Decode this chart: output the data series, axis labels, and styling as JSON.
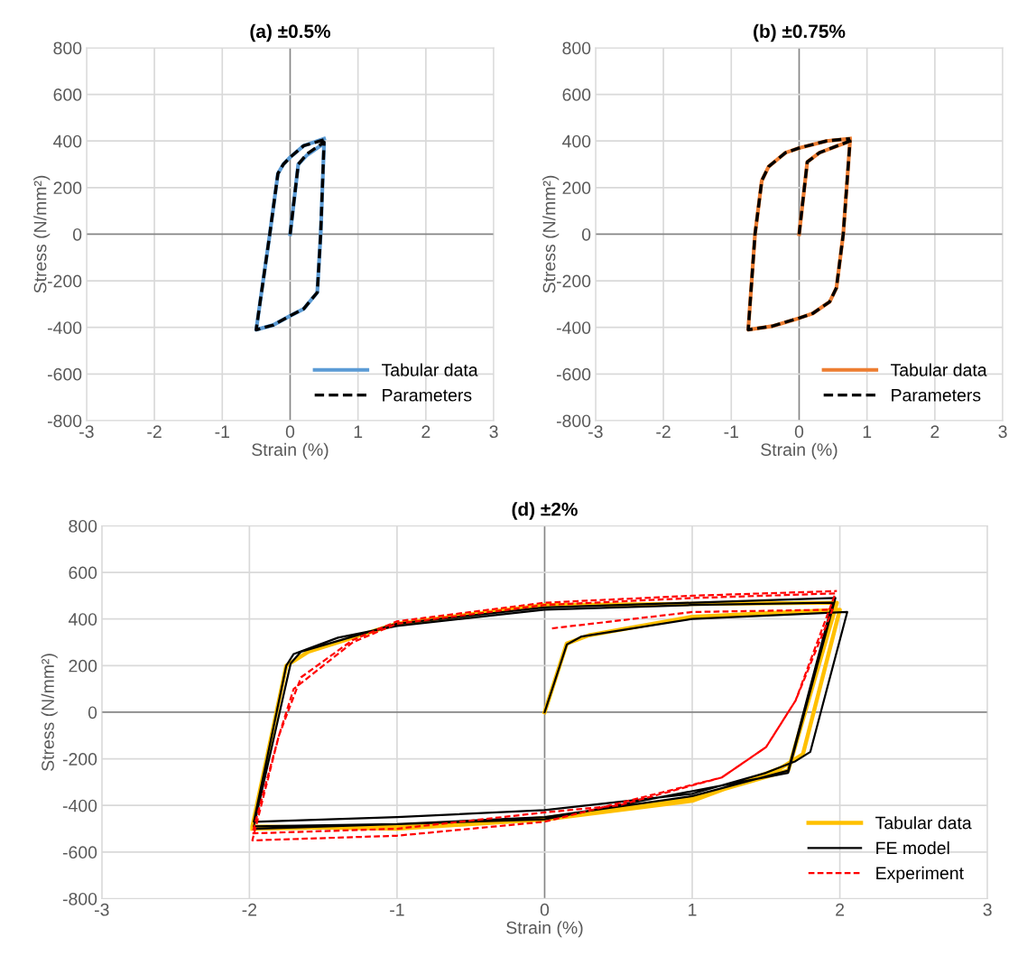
{
  "chart_data": [
    {
      "type": "line",
      "title": "(a) ±0.5%",
      "xlabel": "Strain (%)",
      "ylabel": "Stress (N/mm²)",
      "xlim": [
        -3,
        3
      ],
      "ylim": [
        -800,
        800
      ],
      "xticks": [
        -3,
        -2,
        -1,
        0,
        1,
        2,
        3
      ],
      "yticks": [
        -800,
        -600,
        -400,
        -200,
        0,
        200,
        400,
        600,
        800
      ],
      "grid": true,
      "legend": "bottom right",
      "series": [
        {
          "name": "Tabular data",
          "color": "#5b9bd5",
          "line_style": "solid",
          "x": [
            0,
            0.12,
            0.25,
            0.5,
            0.45,
            0.4,
            0.2,
            0,
            -0.25,
            -0.5,
            -0.3,
            -0.18,
            -0.1,
            0,
            0.2,
            0.5
          ],
          "values": [
            0,
            300,
            340,
            390,
            0,
            -250,
            -320,
            -350,
            -390,
            -410,
            0,
            260,
            300,
            330,
            380,
            410
          ]
        },
        {
          "name": "Parameters",
          "color": "#000000",
          "line_style": "dashed",
          "x": [
            0,
            0.12,
            0.25,
            0.5,
            0.45,
            0.4,
            0.2,
            0,
            -0.25,
            -0.5,
            -0.3,
            -0.18,
            -0.1,
            0,
            0.2,
            0.5
          ],
          "values": [
            0,
            300,
            345,
            395,
            0,
            -250,
            -320,
            -350,
            -390,
            -410,
            0,
            260,
            300,
            330,
            380,
            405
          ]
        }
      ]
    },
    {
      "type": "line",
      "title": "(b) ±0.75%",
      "xlabel": "Strain (%)",
      "ylabel": "Stress (N/mm²)",
      "xlim": [
        -3,
        3
      ],
      "ylim": [
        -800,
        800
      ],
      "xticks": [
        -3,
        -2,
        -1,
        0,
        1,
        2,
        3
      ],
      "yticks": [
        -800,
        -600,
        -400,
        -200,
        0,
        200,
        400,
        600,
        800
      ],
      "grid": true,
      "legend": "bottom right",
      "series": [
        {
          "name": "Tabular data",
          "color": "#ed7d31",
          "line_style": "solid",
          "x": [
            0,
            0.12,
            0.3,
            0.75,
            0.65,
            0.55,
            0.45,
            0.2,
            0,
            -0.4,
            -0.75,
            -0.65,
            -0.55,
            -0.45,
            -0.2,
            0,
            0.4,
            0.75
          ],
          "values": [
            0,
            310,
            350,
            400,
            0,
            -230,
            -290,
            -340,
            -360,
            -395,
            -410,
            0,
            230,
            290,
            350,
            370,
            400,
            410
          ]
        },
        {
          "name": "Parameters",
          "color": "#000000",
          "line_style": "dashed",
          "x": [
            0,
            0.12,
            0.3,
            0.75,
            0.65,
            0.55,
            0.45,
            0.2,
            0,
            -0.4,
            -0.75,
            -0.65,
            -0.55,
            -0.45,
            -0.2,
            0,
            0.4,
            0.75
          ],
          "values": [
            0,
            310,
            350,
            400,
            0,
            -230,
            -290,
            -340,
            -360,
            -395,
            -410,
            0,
            230,
            290,
            350,
            370,
            400,
            410
          ]
        }
      ]
    },
    {
      "type": "line",
      "title": "(d) ±2%",
      "xlabel": "Strain (%)",
      "ylabel": "Stress (N/mm²)",
      "xlim": [
        -3,
        3
      ],
      "ylim": [
        -800,
        800
      ],
      "xticks": [
        -3,
        -2,
        -1,
        0,
        1,
        2,
        3
      ],
      "yticks": [
        -800,
        -600,
        -400,
        -200,
        0,
        200,
        400,
        600,
        800
      ],
      "grid": true,
      "legend": "bottom right",
      "series": [
        {
          "name": "Tabular data",
          "color": "#ffc000",
          "line_style": "solid",
          "x": [
            0,
            0.15,
            0.3,
            1,
            2.0,
            1.75,
            1.6,
            1,
            0,
            -1,
            -1.98,
            -1.75,
            -1.6,
            -1,
            0,
            1,
            1.98,
            1.65,
            1,
            0,
            -1,
            -1.98
          ],
          "values": [
            0,
            295,
            330,
            410,
            440,
            -180,
            -240,
            -380,
            -460,
            -500,
            -490,
            200,
            260,
            380,
            460,
            465,
            470,
            -250,
            -370,
            -455,
            -490,
            -500
          ]
        },
        {
          "name": "FE model",
          "color": "#000000",
          "line_style": "solid",
          "x": [
            0,
            0.15,
            0.25,
            1,
            2.05,
            1.8,
            1.7,
            1.5,
            1,
            0,
            -1,
            -1.97,
            -1.75,
            -1.7,
            -1.4,
            -1,
            0,
            1,
            1.95,
            1.65,
            1,
            0,
            -1,
            -1.97,
            -1.72,
            -1.65,
            -1,
            0,
            1,
            1.97,
            1.65,
            0,
            -1.97
          ],
          "values": [
            0,
            290,
            325,
            400,
            430,
            -170,
            -210,
            -260,
            -350,
            -420,
            -450,
            -470,
            200,
            250,
            320,
            370,
            440,
            460,
            470,
            -250,
            -360,
            -450,
            -480,
            -490,
            210,
            260,
            380,
            450,
            470,
            490,
            -260,
            -460,
            -500
          ]
        },
        {
          "name": "Experiment",
          "color": "#ff0000",
          "line_style": "dashed",
          "x": [
            0.05,
            1,
            1.95,
            1.7,
            1.5,
            1.2,
            0.5,
            0,
            -1,
            -1.98,
            -1.8,
            -1.7,
            -1.5,
            -1.3,
            -1,
            0,
            1,
            1.97,
            1.7,
            1.5,
            1.2,
            0,
            -1,
            -1.98,
            -1.8,
            -1.65,
            -1.3,
            -1,
            0,
            1,
            1.98
          ],
          "values": [
            360,
            430,
            440,
            50,
            -150,
            -280,
            -400,
            -430,
            -500,
            -520,
            -100,
            100,
            200,
            300,
            380,
            460,
            490,
            510,
            50,
            -150,
            -280,
            -470,
            -530,
            -550,
            -100,
            150,
            310,
            390,
            470,
            500,
            520
          ]
        }
      ]
    }
  ]
}
